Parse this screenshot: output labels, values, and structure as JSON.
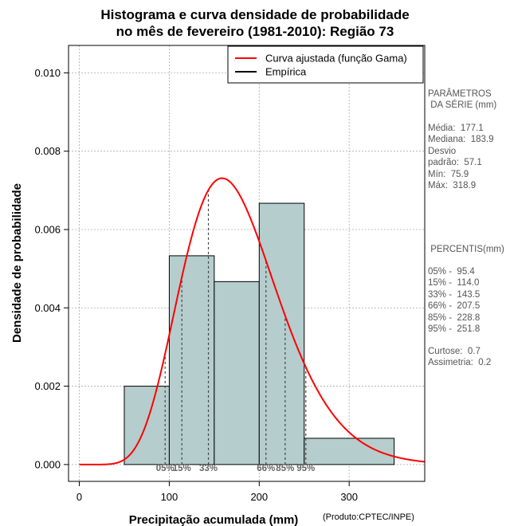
{
  "chart_data": {
    "type": "bar",
    "title_line1": "Histograma e curva densidade de probabilidade",
    "title_line2": "no mês de fevereiro (1981-2010): Região 73",
    "xlabel": "Precipitação acumulada (mm)",
    "ylabel": "Densidade de probabilidade",
    "credit": "(Produto:CPTEC/INPE)",
    "xlim": [
      -12,
      384
    ],
    "ylim": [
      -0.00043,
      0.0107
    ],
    "x_ticks": [
      0,
      100,
      200,
      300
    ],
    "y_ticks": [
      0.0,
      0.002,
      0.004,
      0.006,
      0.008,
      0.01
    ],
    "y_tick_labels": [
      "0.000",
      "0.002",
      "0.004",
      "0.006",
      "0.008",
      "0.010"
    ],
    "grid": true,
    "histogram": {
      "bin_edges": [
        50,
        100,
        150,
        200,
        250,
        350
      ],
      "values": [
        0.002,
        0.00533,
        0.00467,
        0.00667,
        0.00067
      ],
      "fill": "#b5cdcd"
    },
    "gamma_fit": {
      "name": "Curva ajustada (função Gama)",
      "color": "#ff0000",
      "mean": 177.1,
      "sd": 57.1,
      "x_range": [
        0,
        384
      ]
    },
    "empirical": {
      "name": "Empírica",
      "color": "#000000"
    },
    "legend_position": "top-right",
    "percentiles": [
      {
        "label": "05%",
        "value": 95.4
      },
      {
        "label": "15%",
        "value": 114.0
      },
      {
        "label": "33%",
        "value": 143.5
      },
      {
        "label": "66%",
        "value": 207.5
      },
      {
        "label": "85%",
        "value": 228.8
      },
      {
        "label": "95%",
        "value": 251.8
      }
    ]
  },
  "sidebar": {
    "params_heading": "PARÂMETROS\n DA SÉRIE (mm)",
    "params_body": "Média:  177.1\nMediana:  183.9\nDesvio\npadrão:  57.1\nMín:  75.9\nMáx:  318.9",
    "percentis_heading": " PERCENTIS(mm)",
    "percentis_body": "05% -  95.4\n15% -  114.0\n33% -  143.5\n66% -  207.5\n85% -  228.8\n95% -  251.8",
    "stats_body": "Curtose:  0.7\nAssimetria:  0.2"
  }
}
